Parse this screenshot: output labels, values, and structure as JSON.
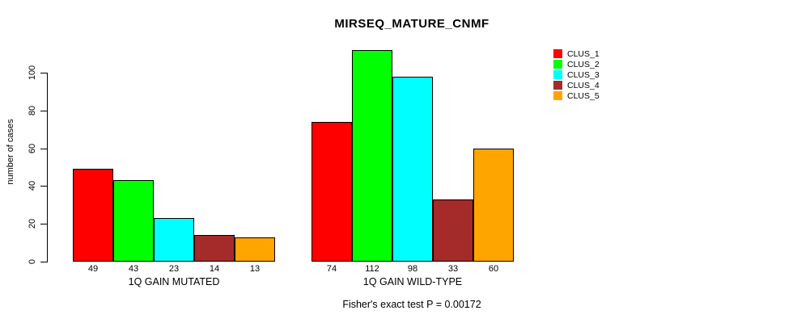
{
  "title": "MIRSEQ_MATURE_CNMF",
  "y_axis_label": "number of cases",
  "footer": "Fisher's exact test P = 0.00172",
  "legend": [
    {
      "label": "CLUS_1",
      "color": "#FF0000"
    },
    {
      "label": "CLUS_2",
      "color": "#00FF00"
    },
    {
      "label": "CLUS_3",
      "color": "#00FFFF"
    },
    {
      "label": "CLUS_4",
      "color": "#A52A2A"
    },
    {
      "label": "CLUS_5",
      "color": "#FFA500"
    }
  ],
  "chart_data": {
    "type": "bar",
    "title": "MIRSEQ_MATURE_CNMF",
    "ylabel": "number of cases",
    "ylim": [
      0,
      112
    ],
    "yticks": [
      0,
      20,
      40,
      60,
      80,
      100
    ],
    "grid": false,
    "legend_position": "right",
    "series_names": [
      "CLUS_1",
      "CLUS_2",
      "CLUS_3",
      "CLUS_4",
      "CLUS_5"
    ],
    "series_colors": [
      "#FF0000",
      "#00FF00",
      "#00FFFF",
      "#A52A2A",
      "#FFA500"
    ],
    "groups": [
      {
        "label": "1Q GAIN MUTATED",
        "values": [
          49,
          43,
          23,
          14,
          13
        ]
      },
      {
        "label": "1Q GAIN WILD-TYPE",
        "values": [
          74,
          112,
          98,
          33,
          60
        ]
      }
    ],
    "bar_value_labels_shown": true,
    "footnote": "Fisher's exact test P = 0.00172"
  }
}
